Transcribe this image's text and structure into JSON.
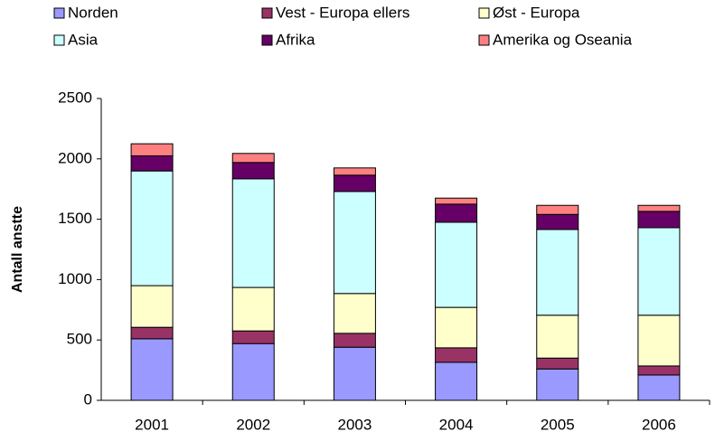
{
  "chart_data": {
    "type": "stacked_bar",
    "y_label": "Antall anstte",
    "categories": [
      "2001",
      "2002",
      "2003",
      "2004",
      "2005",
      "2006"
    ],
    "series": [
      {
        "name": "Norden",
        "color": "#9999ff",
        "values": [
          510,
          470,
          440,
          315,
          260,
          210
        ]
      },
      {
        "name": "Vest - Europa ellers",
        "color": "#993366",
        "values": [
          95,
          105,
          115,
          120,
          90,
          75
        ]
      },
      {
        "name": "Øst - Europa",
        "color": "#ffffcc",
        "values": [
          345,
          360,
          330,
          335,
          355,
          420
        ]
      },
      {
        "name": "Asia",
        "color": "#ccffff",
        "values": [
          950,
          900,
          845,
          705,
          710,
          725
        ]
      },
      {
        "name": "Afrika",
        "color": "#660066",
        "values": [
          125,
          135,
          135,
          150,
          125,
          135
        ]
      },
      {
        "name": "Amerika og Oseania",
        "color": "#ff8080",
        "values": [
          100,
          75,
          60,
          50,
          75,
          50
        ]
      }
    ],
    "ylim": [
      0,
      2500
    ],
    "yticks": [
      0,
      500,
      1000,
      1500,
      2000,
      2500
    ],
    "legend": "top"
  }
}
